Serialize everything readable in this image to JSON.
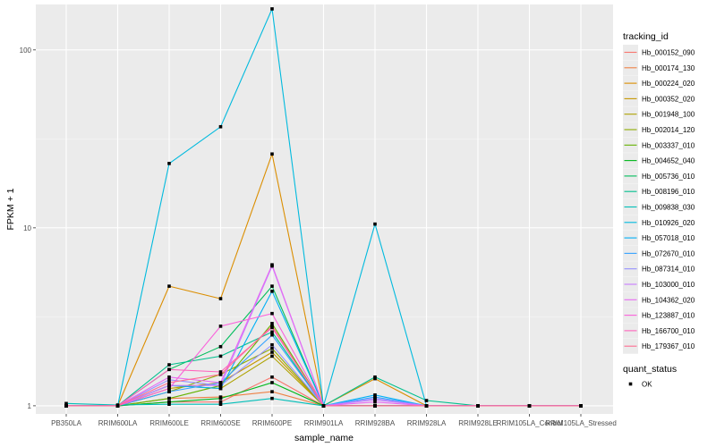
{
  "chart_data": {
    "type": "line",
    "title": "",
    "xlabel": "sample_name",
    "ylabel": "FPKM + 1",
    "yscale": "log10",
    "ylim": [
      0.9,
      180
    ],
    "yticks": [
      1,
      10,
      100
    ],
    "ytick_labels": [
      "1",
      "10",
      "100"
    ],
    "grid": true,
    "legend_position": "right",
    "categories": [
      "PB350LA",
      "RRIM600LA",
      "RRIM600LE",
      "RRIM600SE",
      "RRIM600PE",
      "RRIM901LA",
      "RRIM928BA",
      "RRIM928LA",
      "RRIM928LE",
      "RRIM105LA_Control",
      "RRIM105LA_Stressed"
    ],
    "color_legend": {
      "title": "tracking_id"
    },
    "shape_legend": {
      "title": "quant_status",
      "items": [
        {
          "label": "OK",
          "shape": "square"
        }
      ]
    },
    "series": [
      {
        "name": "Hb_000152_090",
        "color": "#F8766D",
        "values": [
          1,
          1,
          1.05,
          1.05,
          1.45,
          1,
          1,
          1,
          1,
          1,
          1
        ]
      },
      {
        "name": "Hb_000174_130",
        "color": "#EE8044",
        "values": [
          1,
          1,
          1.1,
          1.12,
          1.2,
          1,
          1,
          1,
          1,
          1,
          1
        ]
      },
      {
        "name": "Hb_000224_020",
        "color": "#DB8E00",
        "values": [
          1,
          1,
          4.7,
          4.0,
          26.0,
          1,
          1.42,
          1,
          1,
          1,
          1
        ]
      },
      {
        "name": "Hb_000352_020",
        "color": "#C79800",
        "values": [
          1,
          1,
          1.25,
          1.35,
          2.0,
          1,
          1,
          1,
          1,
          1,
          1
        ]
      },
      {
        "name": "Hb_001948_100",
        "color": "#AEA200",
        "values": [
          1,
          1,
          1.3,
          1.25,
          1.9,
          1,
          1,
          1,
          1,
          1,
          1
        ]
      },
      {
        "name": "Hb_002014_120",
        "color": "#8FAA00",
        "values": [
          1,
          1,
          1.2,
          1.5,
          2.1,
          1,
          1,
          1,
          1,
          1,
          1
        ]
      },
      {
        "name": "Hb_003337_010",
        "color": "#64B200",
        "values": [
          1,
          1,
          1.1,
          1.3,
          2.9,
          1,
          1,
          1,
          1,
          1,
          1
        ]
      },
      {
        "name": "Hb_004652_040",
        "color": "#00B81B",
        "values": [
          1,
          1,
          1.05,
          1.1,
          1.35,
          1,
          1,
          1,
          1,
          1,
          1
        ]
      },
      {
        "name": "Hb_005736_010",
        "color": "#00BD5C",
        "values": [
          1,
          1,
          1.6,
          2.15,
          4.7,
          1,
          1,
          1,
          1,
          1,
          1
        ]
      },
      {
        "name": "Hb_008196_010",
        "color": "#00C08E",
        "values": [
          1,
          1,
          1.7,
          1.9,
          2.6,
          1,
          1.45,
          1.07,
          1,
          1,
          1
        ]
      },
      {
        "name": "Hb_009838_030",
        "color": "#00BFB9",
        "values": [
          1.03,
          1.01,
          1.02,
          1.02,
          1.1,
          1,
          1,
          1,
          1,
          1,
          1
        ]
      },
      {
        "name": "Hb_010926_020",
        "color": "#00BADE",
        "values": [
          1,
          1,
          23.0,
          37.0,
          170.0,
          1,
          10.5,
          1,
          1,
          1,
          1
        ]
      },
      {
        "name": "Hb_057018_010",
        "color": "#00B0F6",
        "values": [
          1,
          1,
          1.3,
          1.25,
          4.4,
          1,
          1.15,
          1,
          1,
          1,
          1
        ]
      },
      {
        "name": "Hb_072670_010",
        "color": "#35A2FF",
        "values": [
          1,
          1,
          1.2,
          1.35,
          2.5,
          1,
          1.12,
          1,
          1,
          1,
          1
        ]
      },
      {
        "name": "Hb_087314_010",
        "color": "#9590FF",
        "values": [
          1,
          1,
          1.4,
          1.3,
          2.2,
          1,
          1.1,
          1,
          1,
          1,
          1
        ]
      },
      {
        "name": "Hb_103000_010",
        "color": "#C77CFF",
        "values": [
          1,
          1,
          1.3,
          1.3,
          6.1,
          1,
          1.08,
          1,
          1,
          1,
          1
        ]
      },
      {
        "name": "Hb_104362_020",
        "color": "#E76BF3",
        "values": [
          1,
          1,
          1.45,
          1.35,
          6.2,
          1,
          1.05,
          1,
          1,
          1,
          1
        ]
      },
      {
        "name": "Hb_123887_010",
        "color": "#FA62DB",
        "values": [
          1,
          1,
          1.25,
          2.8,
          3.3,
          1,
          1,
          1,
          1,
          1,
          1
        ]
      },
      {
        "name": "Hb_166700_010",
        "color": "#FF62BC",
        "values": [
          1,
          1,
          1.6,
          1.55,
          2.75,
          1,
          1,
          1,
          1,
          1,
          1
        ]
      },
      {
        "name": "Hb_179367_010",
        "color": "#FF6C91",
        "values": [
          1,
          1,
          1.35,
          1.5,
          2.8,
          1,
          1,
          1,
          1,
          1,
          1
        ]
      }
    ]
  }
}
